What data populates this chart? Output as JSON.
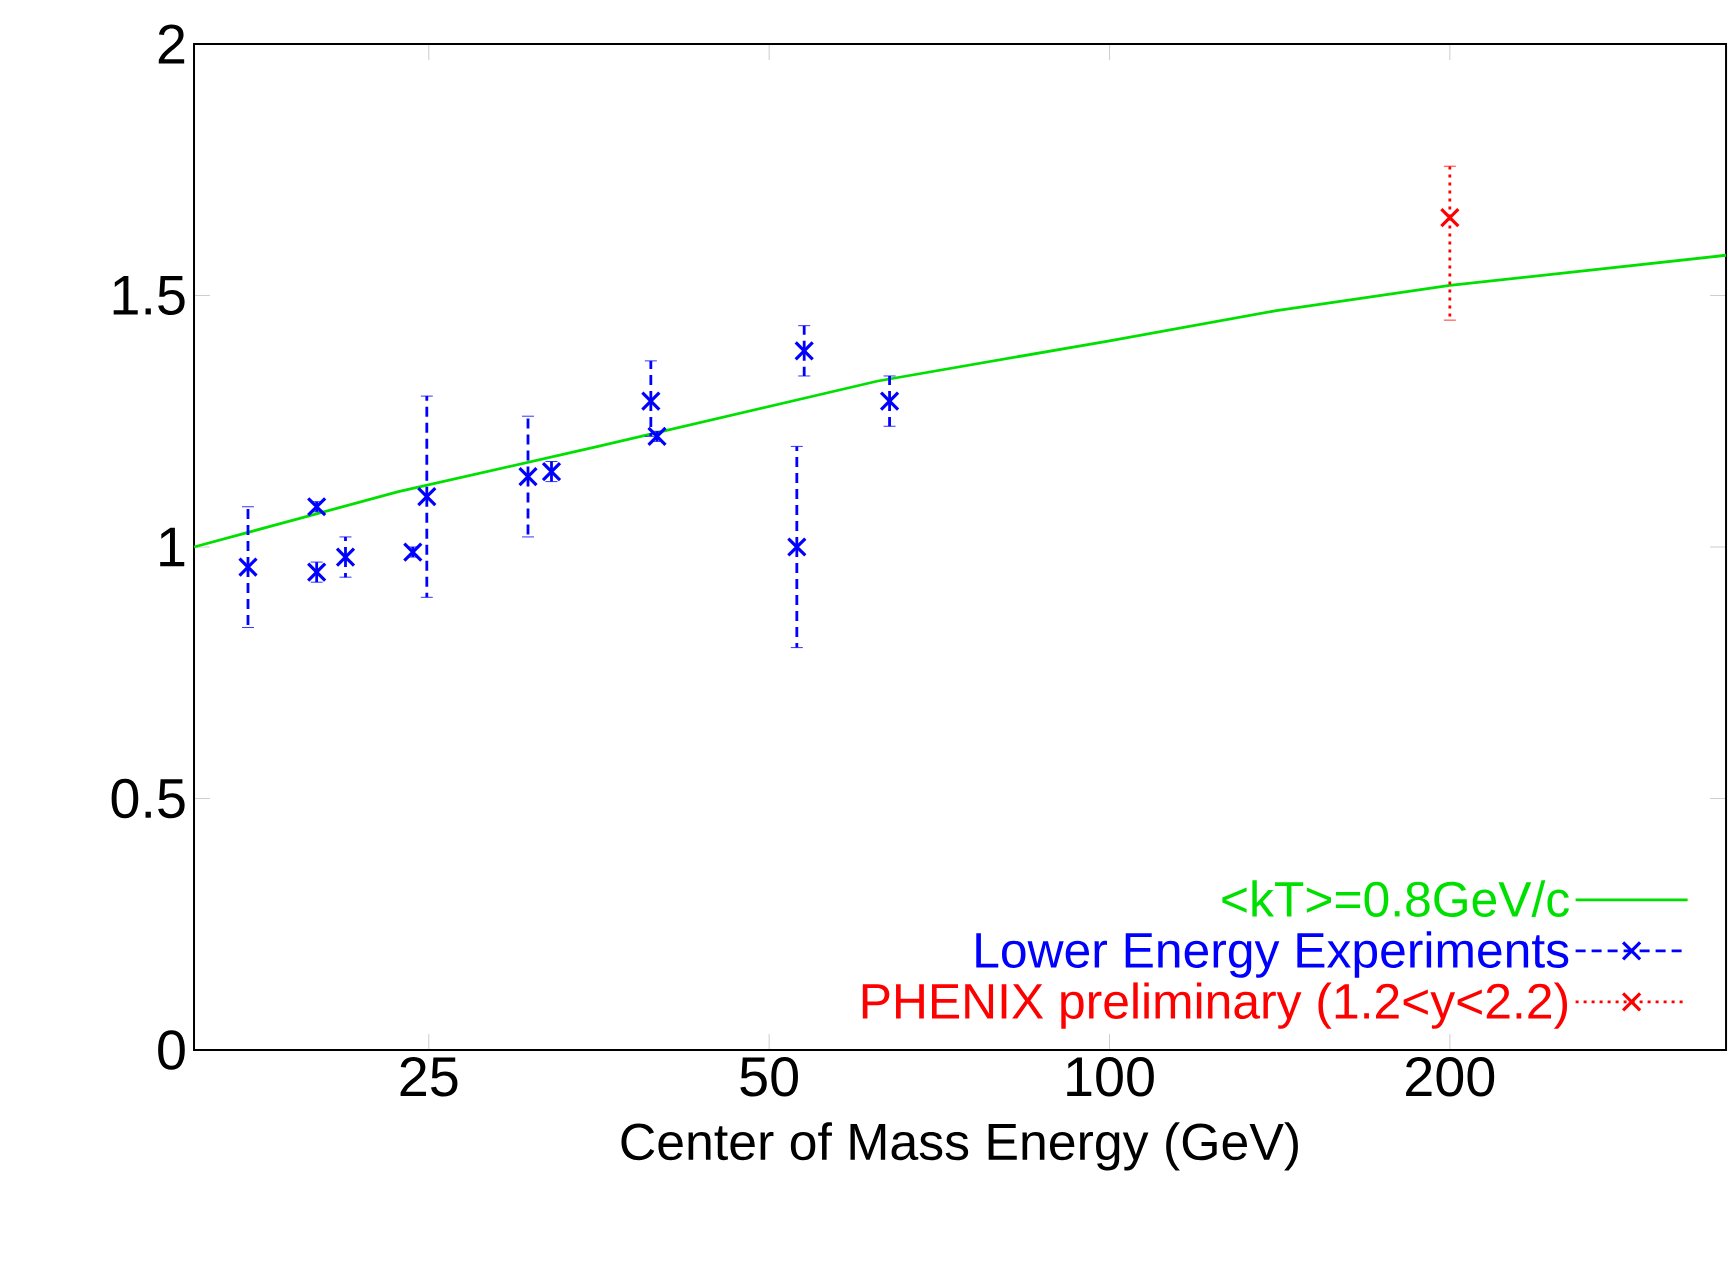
{
  "chart_data": {
    "type": "scatter",
    "xlabel": "Center of Mass Energy (GeV)",
    "log": "x",
    "xlim": [
      15.5,
      351
    ],
    "ylim": [
      0,
      2
    ],
    "xticks": [
      25,
      50,
      100,
      200
    ],
    "yticks": [
      0,
      0.5,
      1,
      1.5,
      2
    ],
    "legend": "bottom right",
    "series": [
      {
        "name": "<kT>=0.8GeV/c",
        "type": "line",
        "color": "#00e000",
        "marker": "none",
        "line_style": "solid",
        "x": [
          15.5,
          23.5,
          35.3,
          62.4,
          100,
          140.5,
          200,
          351
        ],
        "values": [
          1.0,
          1.11,
          1.2,
          1.33,
          1.41,
          1.47,
          1.52,
          1.58
        ]
      },
      {
        "name": "Lower Energy Experiments",
        "type": "scatter",
        "color": "#0000ff",
        "marker": "cross",
        "line_style": "dashed",
        "x": [
          17.3,
          19.9,
          19.9,
          21.1,
          24.2,
          24.9,
          30.6,
          32.1,
          39.3,
          39.8,
          52.9,
          53.7,
          63.9
        ],
        "values": [
          0.96,
          1.08,
          0.95,
          0.98,
          0.99,
          1.1,
          1.14,
          1.15,
          1.29,
          1.22,
          1.0,
          1.39,
          1.29
        ],
        "errors": [
          [
            0.84,
            1.08
          ],
          [
            1.07,
            1.09
          ],
          [
            0.93,
            0.97
          ],
          [
            0.94,
            1.02
          ],
          [
            0.98,
            1.0
          ],
          [
            0.9,
            1.3
          ],
          [
            1.02,
            1.26
          ],
          [
            1.13,
            1.17
          ],
          [
            1.22,
            1.37
          ],
          [
            1.21,
            1.23
          ],
          [
            0.8,
            1.2
          ],
          [
            1.34,
            1.44
          ],
          [
            1.24,
            1.34
          ]
        ]
      },
      {
        "name": "PHENIX preliminary (1.2<y<2.2)",
        "type": "scatter",
        "color": "#ff0000",
        "marker": "cross",
        "line_style": "dotted",
        "x": [
          200
        ],
        "values": [
          1.655
        ],
        "errors": [
          [
            1.451,
            1.757
          ]
        ]
      }
    ]
  }
}
